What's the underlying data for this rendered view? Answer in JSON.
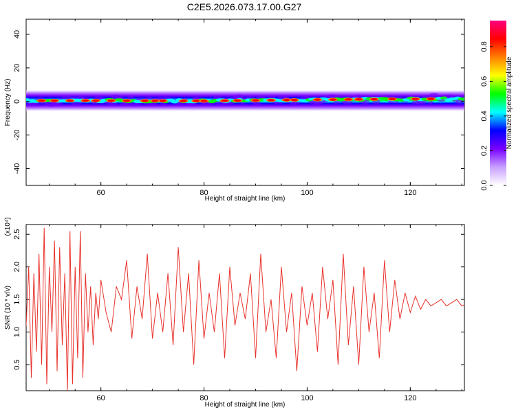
{
  "chart_data": [
    {
      "type": "heatmap",
      "title": "C2E5.2026.073.17.00.G27",
      "xlabel": "Height of straight line (km)",
      "ylabel": "Frequency (Hz)",
      "xlim": [
        45.5,
        130.5
      ],
      "ylim": [
        -50,
        49
      ],
      "xticks": [
        60,
        80,
        100,
        120
      ],
      "yticks": [
        -40,
        -20,
        0,
        20,
        40
      ],
      "band": {
        "center_hz": [
          {
            "x": 46,
            "f": 0.5
          },
          {
            "x": 60,
            "f": 0.5
          },
          {
            "x": 80,
            "f": 0.3
          },
          {
            "x": 100,
            "f": 1.0
          },
          {
            "x": 120,
            "f": 1.5
          },
          {
            "x": 130,
            "f": 1.5
          }
        ],
        "half_width_hz": 3.5
      },
      "hotspots_km": [
        48.5,
        51,
        54,
        57,
        59,
        62,
        65,
        68.5,
        70.5,
        72,
        76,
        78.5,
        80,
        84,
        86.5,
        90,
        93,
        96,
        97.5,
        102,
        105,
        108,
        110,
        113,
        116.5,
        121,
        124
      ],
      "colorbar": {
        "label": "Normalized spectral amplitude",
        "ticks": [
          0.0,
          0.2,
          0.4,
          0.6,
          0.8
        ],
        "range": [
          0,
          0.95
        ],
        "colors": [
          "#ffffff",
          "#c8a0ff",
          "#7a00ff",
          "#0000ff",
          "#00ffff",
          "#00ff00",
          "#ffff00",
          "#ff8000",
          "#ff0000",
          "#ff0080"
        ]
      }
    },
    {
      "type": "line",
      "title": "",
      "xlabel": "Height of straight line (km)",
      "ylabel": "SNR (10 * v/v)",
      "y_multiplier": "(x10⁴)",
      "xlim": [
        45.5,
        130.5
      ],
      "ylim": [
        0.1,
        2.65
      ],
      "xticks": [
        60,
        80,
        100,
        120
      ],
      "yticks": [
        0.5,
        1.0,
        1.5,
        2.0,
        2.5
      ],
      "series": [
        {
          "name": "SNR",
          "color": "#e8312a",
          "x": [
            45.5,
            46.0,
            46.5,
            47.0,
            47.5,
            48.0,
            48.5,
            49.0,
            49.5,
            50.0,
            50.5,
            51.0,
            51.5,
            52.0,
            52.5,
            53.0,
            53.5,
            54.0,
            54.5,
            55.0,
            55.5,
            56.0,
            56.5,
            57.0,
            57.5,
            58.0,
            58.5,
            59.0,
            59.5,
            60.0,
            61.0,
            62.0,
            63.0,
            64.0,
            65.0,
            66.0,
            67.0,
            68.0,
            69.0,
            70.0,
            71.0,
            72.0,
            73.0,
            74.0,
            75.0,
            76.0,
            77.0,
            78.0,
            79.0,
            80.0,
            81.0,
            82.0,
            83.0,
            84.0,
            85.0,
            86.0,
            87.0,
            88.0,
            89.0,
            90.0,
            91.0,
            92.0,
            93.0,
            94.0,
            95.0,
            96.0,
            97.0,
            98.0,
            99.0,
            100.0,
            101.0,
            102.0,
            103.0,
            104.0,
            105.0,
            106.0,
            107.0,
            108.0,
            109.0,
            110.0,
            111.0,
            112.0,
            113.0,
            114.0,
            115.0,
            116.0,
            117.0,
            118.0,
            119.0,
            120.0,
            121.0,
            122.0,
            123.0,
            124.0,
            125.0,
            126.0,
            127.0,
            128.0,
            129.0,
            130.0,
            130.5
          ],
          "values": [
            1.1,
            2.0,
            0.3,
            1.9,
            0.7,
            2.2,
            0.5,
            2.6,
            0.2,
            2.0,
            1.0,
            2.4,
            0.4,
            2.3,
            0.8,
            1.9,
            0.1,
            2.55,
            0.2,
            2.0,
            0.6,
            2.55,
            0.3,
            1.9,
            1.0,
            1.7,
            0.8,
            1.6,
            1.2,
            1.8,
            1.3,
            1.0,
            1.7,
            1.5,
            2.1,
            0.9,
            1.7,
            1.2,
            2.2,
            0.9,
            1.6,
            1.0,
            1.9,
            0.8,
            2.3,
            1.0,
            1.9,
            0.5,
            2.1,
            0.9,
            1.6,
            1.0,
            1.9,
            0.6,
            2.0,
            1.1,
            1.6,
            1.2,
            1.9,
            0.6,
            2.2,
            1.0,
            1.5,
            0.6,
            2.0,
            1.0,
            1.6,
            0.4,
            1.7,
            1.1,
            1.6,
            0.7,
            2.0,
            1.2,
            1.8,
            0.5,
            2.2,
            0.8,
            1.7,
            0.5,
            2.0,
            1.0,
            1.6,
            0.6,
            2.1,
            1.0,
            1.8,
            1.2,
            1.6,
            1.3,
            1.55,
            1.35,
            1.5,
            1.4,
            1.45,
            1.5,
            1.4,
            1.45,
            1.5,
            1.4,
            1.42
          ]
        }
      ]
    }
  ]
}
